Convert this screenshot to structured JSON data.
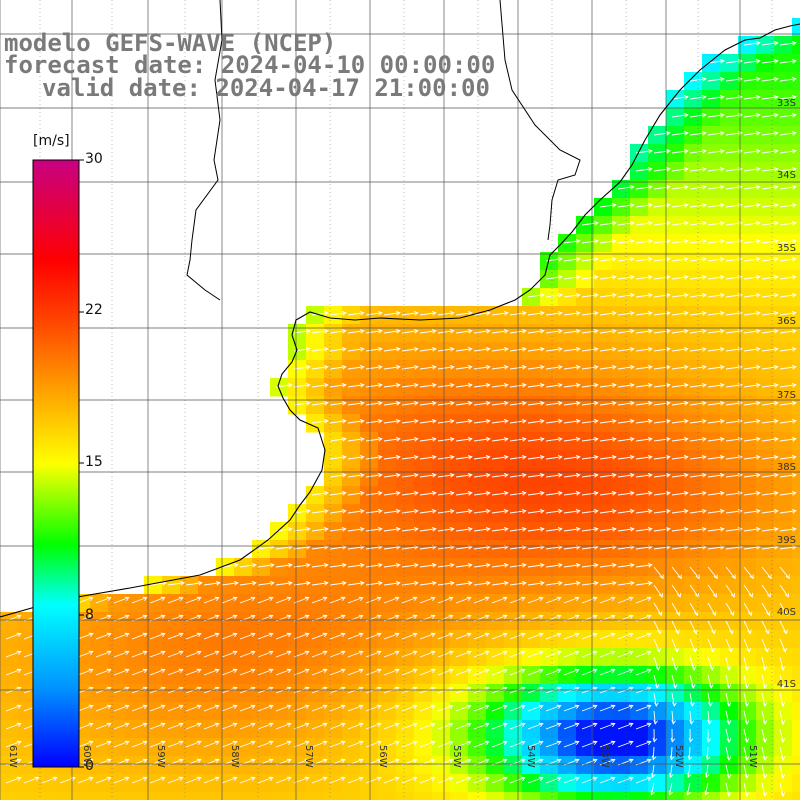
{
  "title": {
    "line1": "modelo GEFS-WAVE (NCEP)",
    "line2": "forecast date: 2024-04-10 00:00:00",
    "line3": "valid date: 2024-04-17 21:00:00"
  },
  "colorbar": {
    "unit": "[m/s]",
    "ticks": [
      "30",
      "22",
      "15",
      "8",
      "0"
    ],
    "range": [
      0,
      30
    ],
    "colors": [
      "#0000ff",
      "#00ffff",
      "#00ff00",
      "#ffff00",
      "#ff8000",
      "#ff0000",
      "#c00080"
    ]
  },
  "map": {
    "lat_labels": [
      "33S",
      "34S",
      "35S",
      "36S",
      "37S",
      "38S",
      "39S",
      "40S",
      "41S"
    ],
    "lon_labels": [
      "61W",
      "60W",
      "59W",
      "58W",
      "57W",
      "56W",
      "55W",
      "54W",
      "53W",
      "52W",
      "51W"
    ],
    "coast_color": "#000000",
    "grid_color": "#555555",
    "arrow_color": "#ffffff",
    "land_color": "#ffffff"
  }
}
